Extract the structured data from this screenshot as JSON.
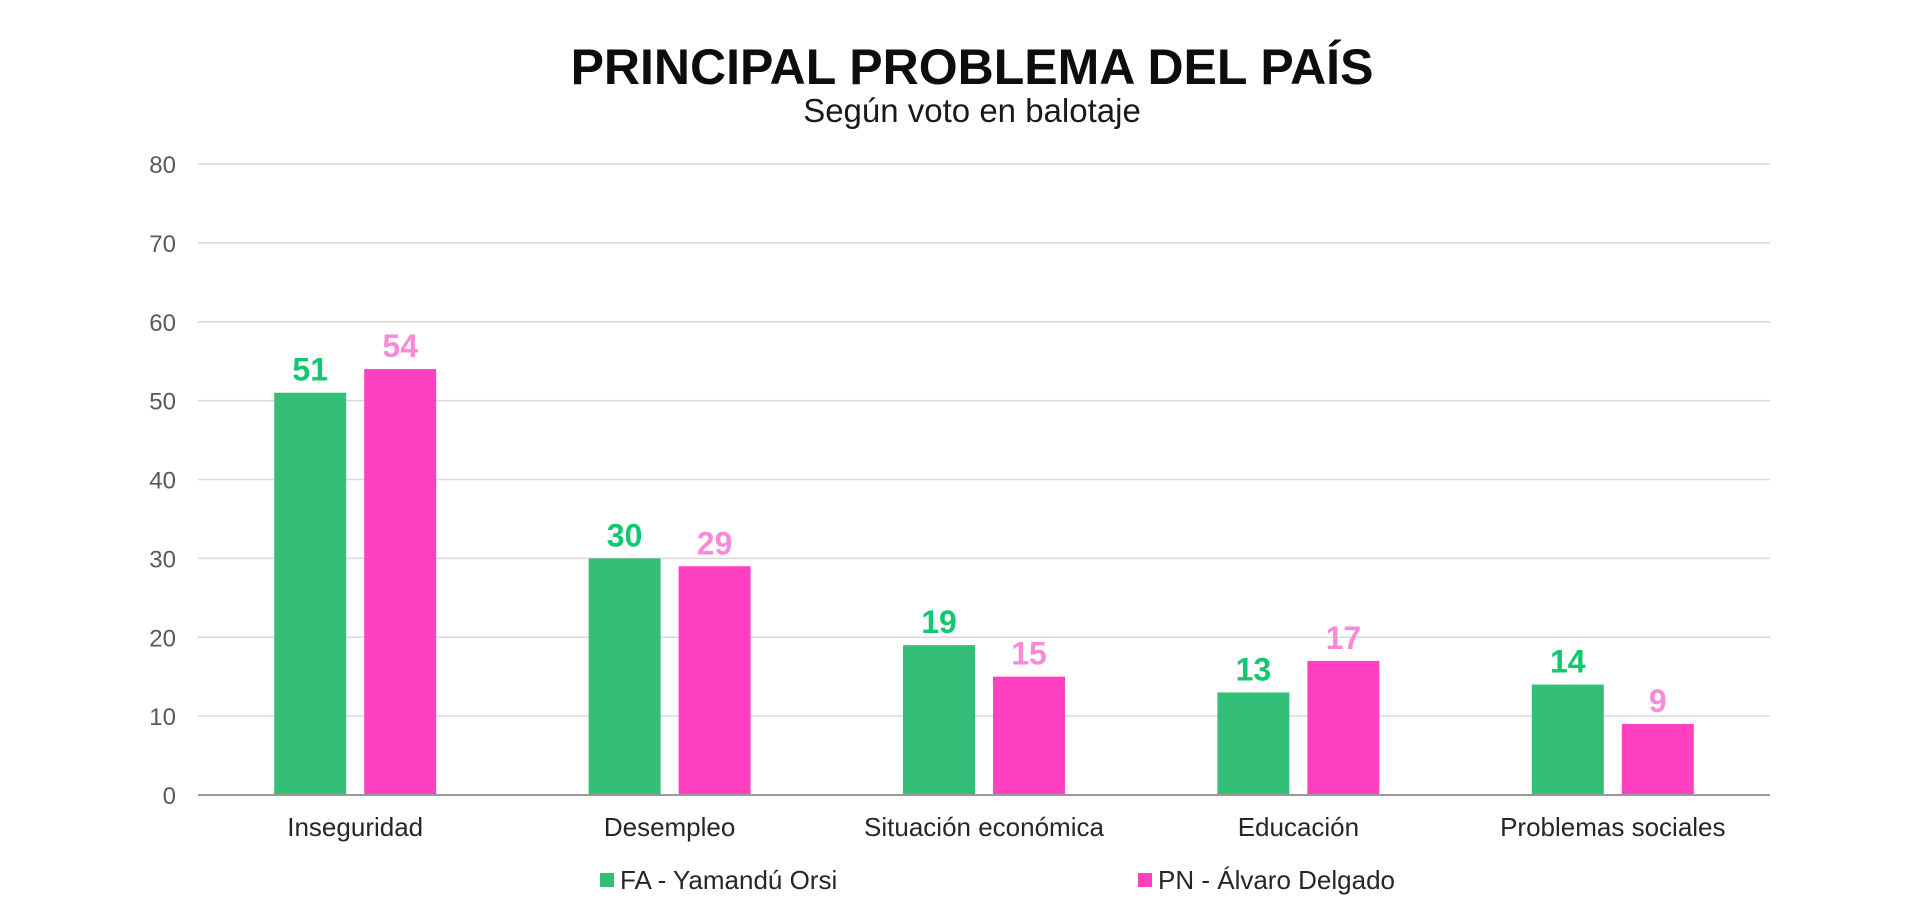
{
  "chart_data": {
    "type": "bar",
    "title": "PRINCIPAL PROBLEMA DEL PAÍS",
    "subtitle": "Según voto en balotaje",
    "categories": [
      "Inseguridad",
      "Desempleo",
      "Situación económica",
      "Educación",
      "Problemas sociales"
    ],
    "series": [
      {
        "name": "FA - Yamandú Orsi",
        "values": [
          51,
          30,
          19,
          13,
          14
        ],
        "color": "#33bf77",
        "label_color": "#10c870"
      },
      {
        "name": "PN - Álvaro Delgado",
        "values": [
          54,
          29,
          15,
          17,
          9
        ],
        "color": "#ff40c0",
        "label_color": "#f98ad8"
      }
    ],
    "ylim": [
      0,
      80
    ],
    "yticks": [
      0,
      10,
      20,
      30,
      40,
      50,
      60,
      70,
      80
    ],
    "xlabel": "",
    "ylabel": "",
    "grid": true,
    "legend": "bottom"
  }
}
